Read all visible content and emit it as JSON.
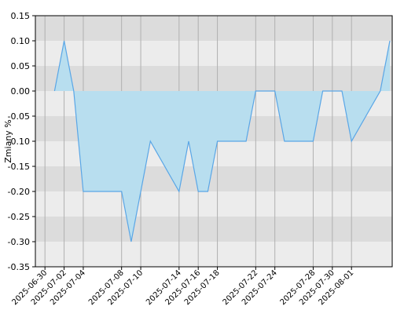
{
  "chart_data": {
    "type": "area",
    "title": "",
    "xlabel": "",
    "ylabel": "Zmiany %",
    "ylim": [
      -0.35,
      0.15
    ],
    "y_ticks": [
      0.15,
      0.1,
      0.05,
      0.0,
      -0.05,
      -0.1,
      -0.15,
      -0.2,
      -0.25,
      -0.3,
      -0.35
    ],
    "x_ticks": [
      "2025-06-30",
      "2025-07-02",
      "2025-07-04",
      "2025-07-08",
      "2025-07-10",
      "2025-07-14",
      "2025-07-16",
      "2025-07-18",
      "2025-07-22",
      "2025-07-24",
      "2025-07-28",
      "2025-07-30",
      "2025-08-01"
    ],
    "grid": true,
    "legend": "none",
    "series": [
      {
        "x": [
          "2025-07-01",
          "2025-07-02",
          "2025-07-03",
          "2025-07-04",
          "2025-07-07",
          "2025-07-08",
          "2025-07-09",
          "2025-07-10",
          "2025-07-11",
          "2025-07-14",
          "2025-07-15",
          "2025-07-16",
          "2025-07-17",
          "2025-07-18",
          "2025-07-21",
          "2025-07-22",
          "2025-07-23",
          "2025-07-24",
          "2025-07-25",
          "2025-07-28",
          "2025-07-29",
          "2025-07-30",
          "2025-07-31",
          "2025-08-01",
          "2025-08-04",
          "2025-08-05"
        ],
        "values": [
          0.0,
          0.1,
          0.0,
          -0.2,
          -0.2,
          -0.2,
          -0.3,
          -0.2,
          -0.1,
          -0.2,
          -0.1,
          -0.2,
          -0.2,
          -0.1,
          -0.1,
          0.0,
          0.0,
          0.0,
          -0.1,
          -0.1,
          0.0,
          0.0,
          0.0,
          -0.1,
          0.0,
          0.1
        ]
      }
    ],
    "colors": {
      "line": "#5aa6e6",
      "fill": "#b8deef",
      "band_dark": "#dcdcdc",
      "band_light": "#ececec",
      "vgrid": "#b0b0b0",
      "frame": "#000000"
    }
  }
}
